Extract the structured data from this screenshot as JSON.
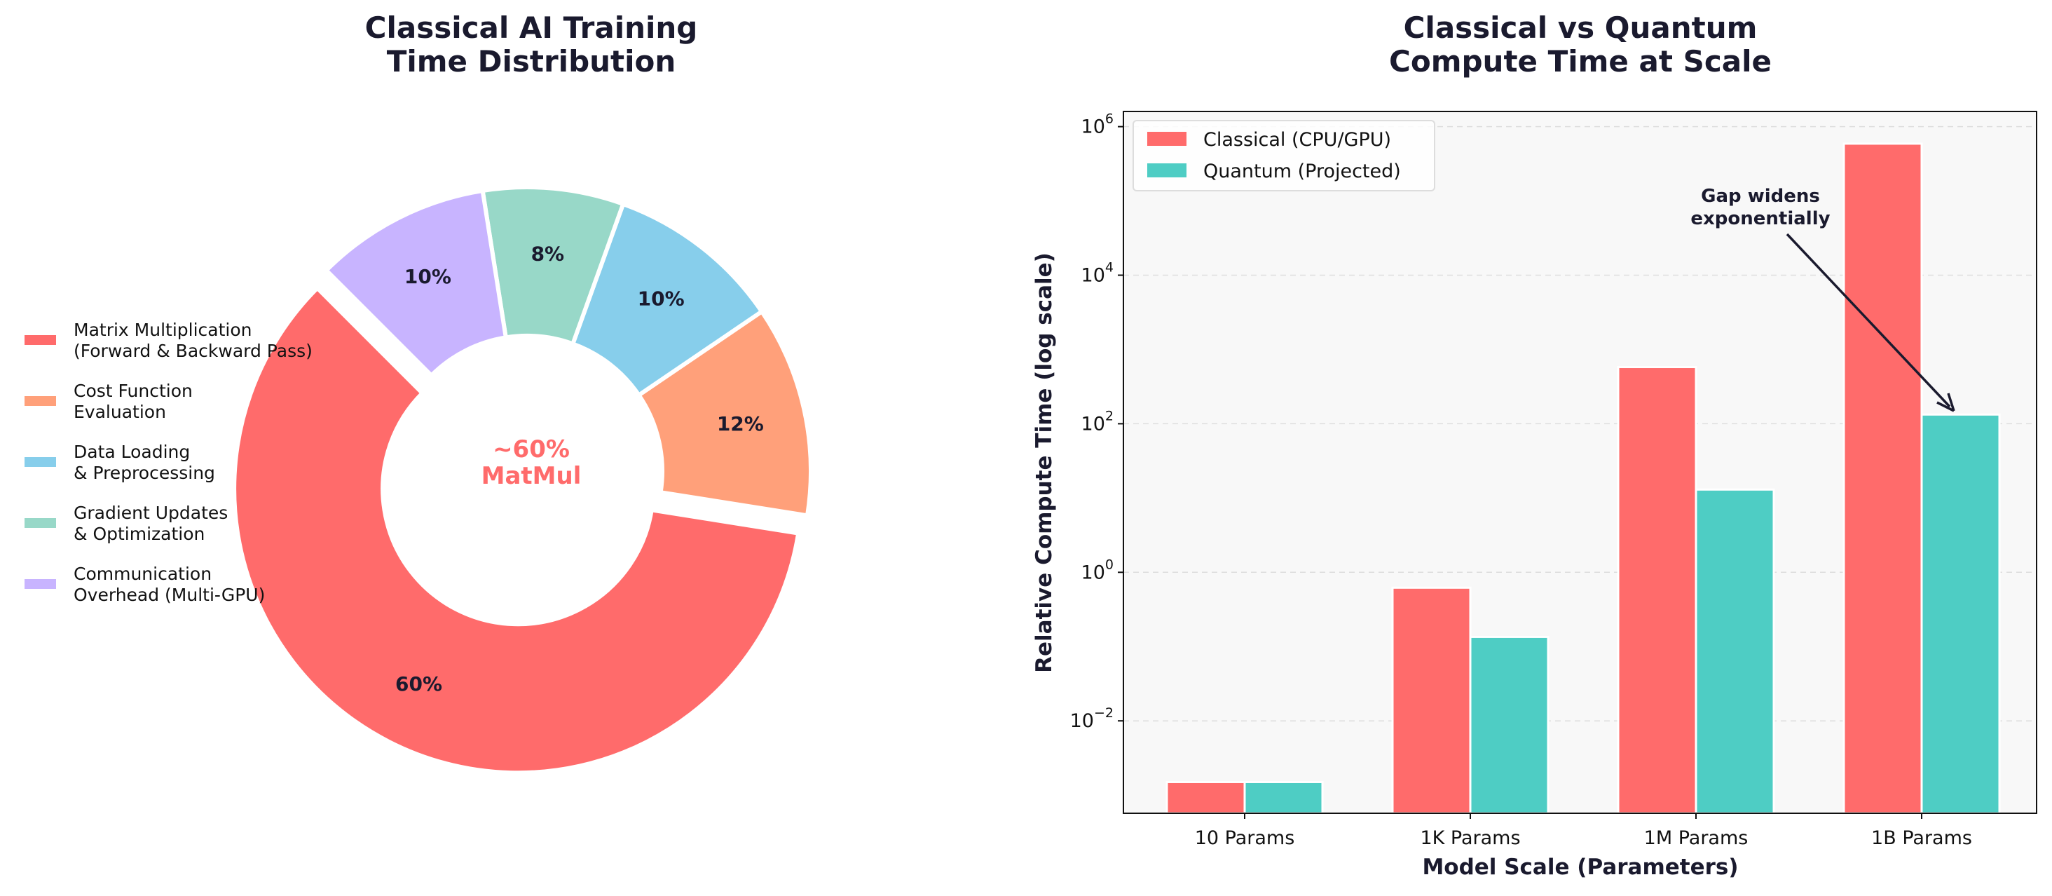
{
  "chart_data": [
    {
      "type": "pie",
      "variant": "donut",
      "title": "Classical AI Training\nTime Distribution",
      "center_text": [
        "~60%",
        "MatMul"
      ],
      "center_text_color": "#ff6b6b",
      "start_angle_deg": 135,
      "exploded": [
        "Matrix Multiplication\n(Forward & Backward Pass)"
      ],
      "legend_position": "left",
      "slices": [
        {
          "label": "Matrix Multiplication\n(Forward & Backward Pass)",
          "value": 60,
          "pct_label": "60%",
          "color": "#ff6b6b"
        },
        {
          "label": "Cost Function\nEvaluation",
          "value": 12,
          "pct_label": "12%",
          "color": "#ffa07a"
        },
        {
          "label": "Data Loading\n& Preprocessing",
          "value": 10,
          "pct_label": "10%",
          "color": "#87ceeb"
        },
        {
          "label": "Gradient Updates\n& Optimization",
          "value": 8,
          "pct_label": "8%",
          "color": "#98d8c8"
        },
        {
          "label": "Communication\nOverhead (Multi-GPU)",
          "value": 10,
          "pct_label": "10%",
          "color": "#c8b4ff"
        }
      ]
    },
    {
      "type": "bar",
      "title": "Classical vs Quantum\nCompute Time at Scale",
      "xlabel": "Model Scale (Parameters)",
      "ylabel": "Relative Compute Time (log scale)",
      "yscale": "log",
      "ylim": [
        0.00057,
        1600000
      ],
      "yticks": [
        {
          "exp": "−2",
          "value": 0.01
        },
        {
          "exp": "0",
          "value": 1
        },
        {
          "exp": "2",
          "value": 100
        },
        {
          "exp": "4",
          "value": 10000
        },
        {
          "exp": "6",
          "value": 1000000
        }
      ],
      "ytick_base": "10",
      "grid": "y dashed",
      "legend_position": "top-left",
      "categories": [
        "10 Params",
        "1K Params",
        "1M Params",
        "1B Params"
      ],
      "series": [
        {
          "name": "Classical (CPU/GPU)",
          "color": "#ff6b6b",
          "values": [
            0.0015,
            0.62,
            580,
            590000
          ]
        },
        {
          "name": "Quantum (Projected)",
          "color": "#4ecdc4",
          "values": [
            0.0015,
            0.135,
            13,
            133
          ]
        }
      ],
      "annotation": {
        "text": [
          "Gap widens",
          "exponentially"
        ],
        "points_to": "1B Params Quantum"
      }
    }
  ]
}
